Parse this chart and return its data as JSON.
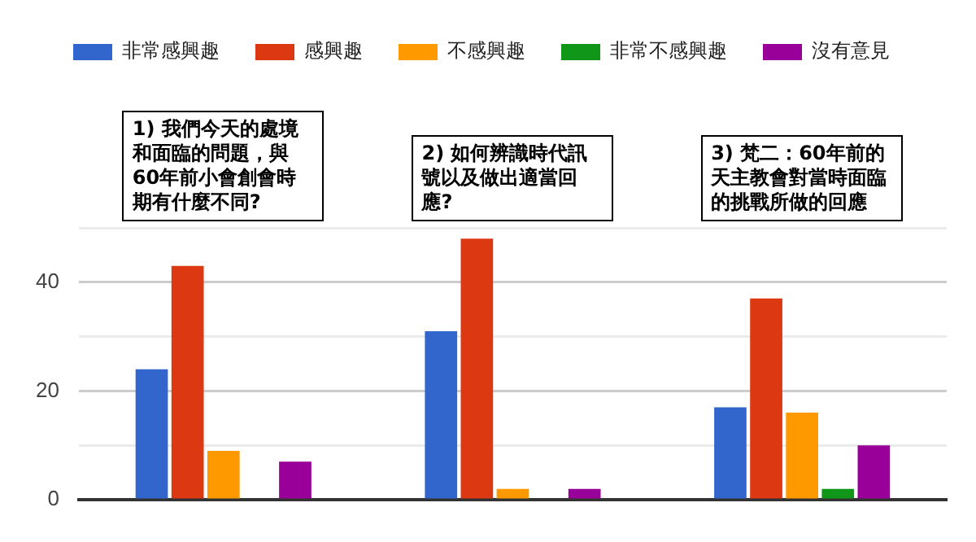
{
  "chart_data": {
    "type": "bar",
    "categories": [
      null,
      null,
      null
    ],
    "series": [
      {
        "name": "非常感興趣",
        "color": "#3366cc",
        "values": [
          24,
          31,
          17
        ]
      },
      {
        "name": "感興趣",
        "color": "#dc3912",
        "values": [
          43,
          48,
          37
        ]
      },
      {
        "name": "不感興趣",
        "color": "#ff9900",
        "values": [
          9,
          2,
          16
        ]
      },
      {
        "name": "非常不感興趣",
        "color": "#109618",
        "values": [
          0,
          0,
          2
        ]
      },
      {
        "name": "沒有意見",
        "color": "#990099",
        "values": [
          7,
          2,
          10
        ]
      }
    ],
    "ylim": [
      0,
      50
    ],
    "yticks": [
      0,
      {
        "value": 10,
        "label": null
      },
      20,
      {
        "value": 30,
        "label": null
      },
      40,
      {
        "value": 50,
        "label": null
      }
    ],
    "grid": "y",
    "legend": "top",
    "tick_labels": "y",
    "annotations": [
      "1) 我們今天的處境和面臨的問題，與60年前小會創會時期有什麼不同?",
      "2) 如何辨識時代訊號以及做出適當回應?",
      "3) 梵二：60年前的天主教會對當時面臨的挑戰所做的回應"
    ]
  }
}
